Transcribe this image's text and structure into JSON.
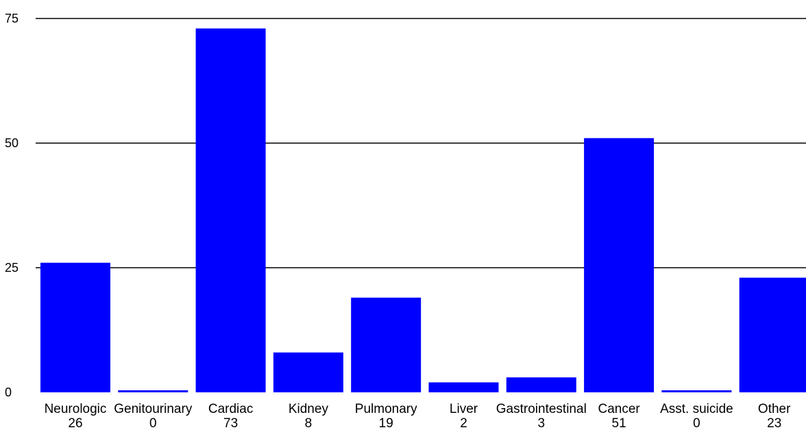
{
  "chart_data": {
    "type": "bar",
    "categories": [
      "Neurologic",
      "Genitourinary",
      "Cardiac",
      "Kidney",
      "Pulmonary",
      "Liver",
      "Gastrointestinal",
      "Cancer",
      "Asst. suicide",
      "Other"
    ],
    "values": [
      26,
      0,
      73,
      8,
      19,
      2,
      3,
      51,
      0,
      23
    ],
    "value_labels": [
      "26",
      "0",
      "73",
      "8",
      "19",
      "2",
      "3",
      "51",
      "0",
      "23"
    ],
    "ylim": [
      0,
      75
    ],
    "yticks": [
      0,
      25,
      50,
      75
    ],
    "ytick_labels": [
      "0",
      "25",
      "50",
      "75"
    ],
    "grid": true,
    "bar_color": "#0000ff",
    "title": "",
    "xlabel": "",
    "ylabel": ""
  }
}
